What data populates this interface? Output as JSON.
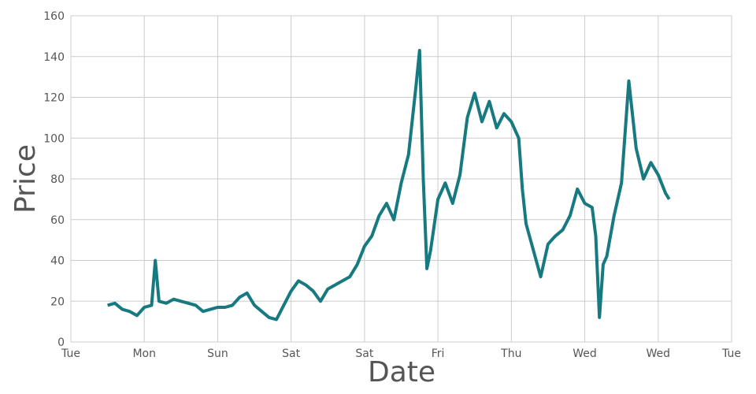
{
  "chart_data": {
    "type": "line",
    "x_label": "Date",
    "y_label": "Price",
    "xlim": [
      0,
      9
    ],
    "xticks": [
      {
        "value": 0,
        "label": "Tue"
      },
      {
        "value": 1,
        "label": "Mon"
      },
      {
        "value": 2,
        "label": "Sun"
      },
      {
        "value": 3,
        "label": "Sat"
      },
      {
        "value": 4,
        "label": "Sat"
      },
      {
        "value": 5,
        "label": "Fri"
      },
      {
        "value": 6,
        "label": "Thu"
      },
      {
        "value": 7,
        "label": "Wed"
      },
      {
        "value": 8,
        "label": "Wed"
      },
      {
        "value": 9,
        "label": "Tue"
      }
    ],
    "ylim": [
      0,
      160
    ],
    "yticks": [
      0,
      20,
      40,
      60,
      80,
      100,
      120,
      140,
      160
    ],
    "grid": true,
    "x": [
      0.5,
      0.6,
      0.7,
      0.8,
      0.9,
      1.0,
      1.1,
      1.15,
      1.2,
      1.3,
      1.4,
      1.5,
      1.6,
      1.7,
      1.8,
      1.9,
      2.0,
      2.1,
      2.2,
      2.3,
      2.4,
      2.5,
      2.6,
      2.7,
      2.8,
      2.9,
      3.0,
      3.1,
      3.2,
      3.3,
      3.4,
      3.5,
      3.6,
      3.7,
      3.8,
      3.9,
      4.0,
      4.1,
      4.2,
      4.3,
      4.4,
      4.5,
      4.6,
      4.7,
      4.75,
      4.8,
      4.85,
      4.9,
      5.0,
      5.1,
      5.2,
      5.3,
      5.4,
      5.5,
      5.6,
      5.7,
      5.8,
      5.9,
      6.0,
      6.1,
      6.15,
      6.2,
      6.3,
      6.4,
      6.5,
      6.6,
      6.7,
      6.8,
      6.9,
      7.0,
      7.1,
      7.15,
      7.2,
      7.25,
      7.3,
      7.4,
      7.5,
      7.6,
      7.7,
      7.8,
      7.9,
      8.0,
      8.1,
      8.15
    ],
    "series": [
      {
        "color": "#167a80",
        "values": [
          18,
          19,
          16,
          15,
          13,
          17,
          18,
          40,
          20,
          19,
          21,
          20,
          19,
          18,
          15,
          16,
          17,
          17,
          18,
          22,
          24,
          18,
          15,
          12,
          11,
          18,
          25,
          30,
          28,
          25,
          20,
          26,
          28,
          30,
          32,
          38,
          47,
          52,
          62,
          68,
          60,
          78,
          92,
          125,
          143,
          80,
          36,
          45,
          70,
          78,
          68,
          82,
          110,
          122,
          108,
          118,
          105,
          112,
          108,
          100,
          75,
          58,
          45,
          32,
          48,
          52,
          55,
          62,
          75,
          68,
          66,
          52,
          12,
          38,
          42,
          62,
          78,
          128,
          95,
          80,
          88,
          82,
          73,
          70
        ]
      }
    ]
  }
}
